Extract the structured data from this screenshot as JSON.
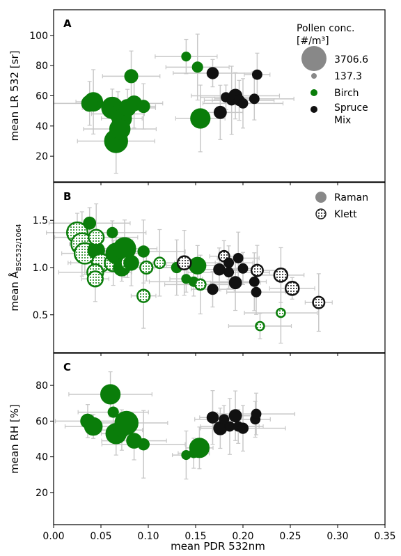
{
  "chart_data": {
    "type": "scatter",
    "shared_x": {
      "label": "mean PDR 532nm",
      "lim": [
        0,
        0.35
      ],
      "ticks": [
        0.0,
        0.05,
        0.1,
        0.15,
        0.2,
        0.25,
        0.3,
        0.35
      ],
      "tick_labels": [
        "0.00",
        "0.05",
        "0.10",
        "0.15",
        "0.20",
        "0.25",
        "0.30",
        "0.35"
      ]
    },
    "colors": {
      "birch": "#0a7d0a",
      "spruce": "#111111",
      "legend_grey": "#888888",
      "error_bar": "#c8c8c8"
    },
    "panels": [
      {
        "letter": "A",
        "ylabel": "mean LR 532 [sr]",
        "ylim": [
          3,
          117
        ],
        "yticks": [
          20,
          40,
          60,
          80,
          100
        ],
        "legend": {
          "title_line1": "Pollen conc.",
          "title_line2": "[#/m³]",
          "size_max_label": "3706.6",
          "size_min_label": "137.3",
          "birch_label": "Birch",
          "spruce_label_line1": "Spruce",
          "spruce_label_line2": "Mix"
        },
        "points": [
          {
            "x": 0.042,
            "y": 56,
            "s": 0.65,
            "sp": "birch"
          },
          {
            "x": 0.038,
            "y": 55,
            "s": 0.5,
            "sp": "birch"
          },
          {
            "x": 0.062,
            "y": 52,
            "s": 0.8,
            "sp": "birch"
          },
          {
            "x": 0.068,
            "y": 48,
            "s": 0.55,
            "sp": "birch"
          },
          {
            "x": 0.072,
            "y": 45,
            "s": 0.7,
            "sp": "birch"
          },
          {
            "x": 0.066,
            "y": 30,
            "s": 0.9,
            "sp": "birch"
          },
          {
            "x": 0.07,
            "y": 38,
            "s": 0.75,
            "sp": "birch"
          },
          {
            "x": 0.078,
            "y": 52,
            "s": 0.55,
            "sp": "birch"
          },
          {
            "x": 0.082,
            "y": 73,
            "s": 0.35,
            "sp": "birch"
          },
          {
            "x": 0.085,
            "y": 55,
            "s": 0.45,
            "sp": "birch"
          },
          {
            "x": 0.095,
            "y": 53,
            "s": 0.3,
            "sp": "birch"
          },
          {
            "x": 0.14,
            "y": 86,
            "s": 0.12,
            "sp": "birch"
          },
          {
            "x": 0.152,
            "y": 79,
            "s": 0.2,
            "sp": "birch"
          },
          {
            "x": 0.155,
            "y": 45,
            "s": 0.7,
            "sp": "birch"
          },
          {
            "x": 0.168,
            "y": 75,
            "s": 0.25,
            "sp": "spruce"
          },
          {
            "x": 0.176,
            "y": 49,
            "s": 0.3,
            "sp": "spruce"
          },
          {
            "x": 0.182,
            "y": 59,
            "s": 0.15,
            "sp": "spruce"
          },
          {
            "x": 0.188,
            "y": 57,
            "s": 0.15,
            "sp": "spruce"
          },
          {
            "x": 0.192,
            "y": 60,
            "s": 0.35,
            "sp": "spruce"
          },
          {
            "x": 0.196,
            "y": 57,
            "s": 0.2,
            "sp": "spruce"
          },
          {
            "x": 0.2,
            "y": 55,
            "s": 0.15,
            "sp": "spruce"
          },
          {
            "x": 0.212,
            "y": 58,
            "s": 0.15,
            "sp": "spruce"
          },
          {
            "x": 0.215,
            "y": 74,
            "s": 0.15,
            "sp": "spruce"
          }
        ]
      },
      {
        "letter": "B",
        "ylabel_prefix": "mean Å",
        "ylabel_sub": "BSC532/1064",
        "ylim": [
          0.1,
          1.9
        ],
        "yticks": [
          0.5,
          1.0,
          1.5
        ],
        "legend": {
          "raman_label": "Raman",
          "klett_label": "Klett"
        },
        "points": [
          {
            "x": 0.025,
            "y": 1.37,
            "s": 0.75,
            "sp": "birch",
            "m": "klett"
          },
          {
            "x": 0.03,
            "y": 1.25,
            "s": 0.8,
            "sp": "birch",
            "m": "klett"
          },
          {
            "x": 0.033,
            "y": 1.15,
            "s": 0.75,
            "sp": "birch",
            "m": "klett"
          },
          {
            "x": 0.038,
            "y": 1.47,
            "s": 0.3,
            "sp": "birch",
            "m": "raman"
          },
          {
            "x": 0.045,
            "y": 1.18,
            "s": 0.55,
            "sp": "birch",
            "m": "raman"
          },
          {
            "x": 0.045,
            "y": 1.32,
            "s": 0.45,
            "sp": "birch",
            "m": "klett"
          },
          {
            "x": 0.05,
            "y": 1.05,
            "s": 0.6,
            "sp": "birch",
            "m": "klett"
          },
          {
            "x": 0.044,
            "y": 0.95,
            "s": 0.5,
            "sp": "birch",
            "m": "klett"
          },
          {
            "x": 0.044,
            "y": 0.88,
            "s": 0.45,
            "sp": "birch",
            "m": "klett"
          },
          {
            "x": 0.062,
            "y": 1.37,
            "s": 0.2,
            "sp": "birch",
            "m": "raman"
          },
          {
            "x": 0.063,
            "y": 1.05,
            "s": 0.55,
            "sp": "birch",
            "m": "klett"
          },
          {
            "x": 0.066,
            "y": 1.15,
            "s": 0.75,
            "sp": "birch",
            "m": "raman"
          },
          {
            "x": 0.072,
            "y": 1.0,
            "s": 0.55,
            "sp": "birch",
            "m": "raman"
          },
          {
            "x": 0.075,
            "y": 1.2,
            "s": 0.85,
            "sp": "birch",
            "m": "raman"
          },
          {
            "x": 0.078,
            "y": 1.05,
            "s": 0.35,
            "sp": "birch",
            "m": "klett"
          },
          {
            "x": 0.082,
            "y": 1.05,
            "s": 0.45,
            "sp": "birch",
            "m": "raman"
          },
          {
            "x": 0.095,
            "y": 1.17,
            "s": 0.25,
            "sp": "birch",
            "m": "raman"
          },
          {
            "x": 0.095,
            "y": 0.7,
            "s": 0.3,
            "sp": "birch",
            "m": "klett"
          },
          {
            "x": 0.098,
            "y": 1.0,
            "s": 0.3,
            "sp": "birch",
            "m": "klett"
          },
          {
            "x": 0.112,
            "y": 1.05,
            "s": 0.2,
            "sp": "birch",
            "m": "klett"
          },
          {
            "x": 0.13,
            "y": 1.0,
            "s": 0.2,
            "sp": "birch",
            "m": "raman"
          },
          {
            "x": 0.14,
            "y": 0.88,
            "s": 0.12,
            "sp": "birch",
            "m": "raman"
          },
          {
            "x": 0.148,
            "y": 0.85,
            "s": 0.15,
            "sp": "birch",
            "m": "raman"
          },
          {
            "x": 0.152,
            "y": 1.02,
            "s": 0.55,
            "sp": "birch",
            "m": "raman"
          },
          {
            "x": 0.155,
            "y": 0.82,
            "s": 0.2,
            "sp": "birch",
            "m": "klett"
          },
          {
            "x": 0.218,
            "y": 0.38,
            "s": 0.08,
            "sp": "birch",
            "m": "klett"
          },
          {
            "x": 0.24,
            "y": 0.52,
            "s": 0.08,
            "sp": "birch",
            "m": "klett"
          },
          {
            "x": 0.138,
            "y": 1.05,
            "s": 0.35,
            "sp": "spruce",
            "m": "klett"
          },
          {
            "x": 0.168,
            "y": 0.77,
            "s": 0.2,
            "sp": "spruce",
            "m": "raman"
          },
          {
            "x": 0.175,
            "y": 0.98,
            "s": 0.25,
            "sp": "spruce",
            "m": "raman"
          },
          {
            "x": 0.18,
            "y": 1.12,
            "s": 0.2,
            "sp": "spruce",
            "m": "klett"
          },
          {
            "x": 0.185,
            "y": 1.05,
            "s": 0.15,
            "sp": "spruce",
            "m": "raman"
          },
          {
            "x": 0.185,
            "y": 0.95,
            "s": 0.15,
            "sp": "spruce",
            "m": "raman"
          },
          {
            "x": 0.192,
            "y": 0.84,
            "s": 0.3,
            "sp": "spruce",
            "m": "raman"
          },
          {
            "x": 0.195,
            "y": 1.1,
            "s": 0.15,
            "sp": "spruce",
            "m": "raman"
          },
          {
            "x": 0.2,
            "y": 0.99,
            "s": 0.15,
            "sp": "spruce",
            "m": "raman"
          },
          {
            "x": 0.212,
            "y": 0.85,
            "s": 0.15,
            "sp": "spruce",
            "m": "raman"
          },
          {
            "x": 0.214,
            "y": 0.74,
            "s": 0.15,
            "sp": "spruce",
            "m": "raman"
          },
          {
            "x": 0.215,
            "y": 0.97,
            "s": 0.25,
            "sp": "spruce",
            "m": "klett"
          },
          {
            "x": 0.24,
            "y": 0.92,
            "s": 0.35,
            "sp": "spruce",
            "m": "klett"
          },
          {
            "x": 0.252,
            "y": 0.78,
            "s": 0.35,
            "sp": "spruce",
            "m": "klett"
          },
          {
            "x": 0.28,
            "y": 0.63,
            "s": 0.25,
            "sp": "spruce",
            "m": "klett"
          }
        ]
      },
      {
        "letter": "C",
        "ylabel": "mean RH [%]",
        "ylim": [
          2,
          98
        ],
        "yticks": [
          20,
          40,
          60,
          80
        ],
        "points": [
          {
            "x": 0.036,
            "y": 60,
            "s": 0.4,
            "sp": "birch"
          },
          {
            "x": 0.042,
            "y": 57,
            "s": 0.6,
            "sp": "birch"
          },
          {
            "x": 0.06,
            "y": 75,
            "s": 0.7,
            "sp": "birch"
          },
          {
            "x": 0.063,
            "y": 65,
            "s": 0.2,
            "sp": "birch"
          },
          {
            "x": 0.066,
            "y": 53,
            "s": 0.75,
            "sp": "birch"
          },
          {
            "x": 0.072,
            "y": 55,
            "s": 0.45,
            "sp": "birch"
          },
          {
            "x": 0.077,
            "y": 59,
            "s": 0.9,
            "sp": "birch"
          },
          {
            "x": 0.085,
            "y": 49,
            "s": 0.45,
            "sp": "birch"
          },
          {
            "x": 0.095,
            "y": 47,
            "s": 0.25,
            "sp": "birch"
          },
          {
            "x": 0.14,
            "y": 41,
            "s": 0.12,
            "sp": "birch"
          },
          {
            "x": 0.148,
            "y": 42,
            "s": 0.12,
            "sp": "birch"
          },
          {
            "x": 0.154,
            "y": 45,
            "s": 0.7,
            "sp": "birch"
          },
          {
            "x": 0.168,
            "y": 62,
            "s": 0.25,
            "sp": "spruce"
          },
          {
            "x": 0.176,
            "y": 56,
            "s": 0.35,
            "sp": "spruce"
          },
          {
            "x": 0.18,
            "y": 61,
            "s": 0.15,
            "sp": "spruce"
          },
          {
            "x": 0.186,
            "y": 57,
            "s": 0.15,
            "sp": "spruce"
          },
          {
            "x": 0.192,
            "y": 63,
            "s": 0.3,
            "sp": "spruce"
          },
          {
            "x": 0.195,
            "y": 57,
            "s": 0.15,
            "sp": "spruce"
          },
          {
            "x": 0.2,
            "y": 56,
            "s": 0.2,
            "sp": "spruce"
          },
          {
            "x": 0.213,
            "y": 61,
            "s": 0.15,
            "sp": "spruce"
          },
          {
            "x": 0.214,
            "y": 64,
            "s": 0.15,
            "sp": "spruce"
          }
        ]
      }
    ]
  }
}
